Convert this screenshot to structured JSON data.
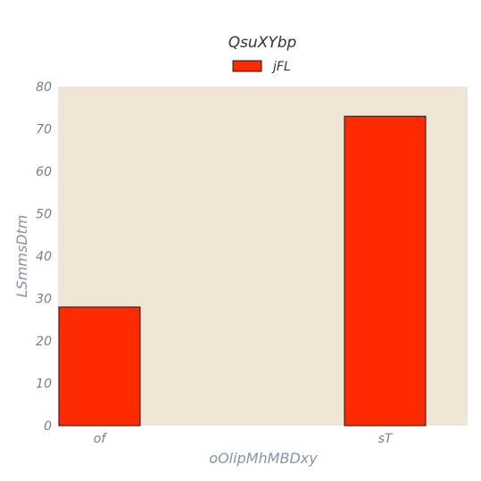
{
  "chart_data": {
    "type": "bar",
    "title": "QsuXYbp",
    "xlabel": "oOlipMhMBDxy",
    "ylabel": "LSmmsDtm",
    "categories": [
      "of",
      "sT"
    ],
    "series": [
      {
        "name": "jFL",
        "values": [
          28,
          73
        ]
      }
    ],
    "ylim": [
      0,
      80
    ],
    "yticks": [
      0,
      10,
      20,
      30,
      40,
      50,
      60,
      70,
      80
    ],
    "grid": false,
    "legend_position": "top-center"
  },
  "colors": {
    "plot_background": "#efe6d5",
    "bar_fill": "#ff2a00",
    "bar_edge": "#1a1a1a",
    "tick_text": "#777f8a",
    "axis_label": "#8794a0",
    "title_text": "#333333"
  }
}
